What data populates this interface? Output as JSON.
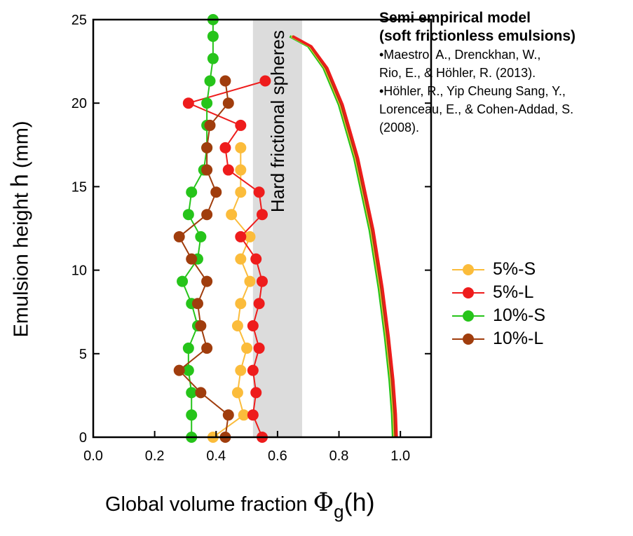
{
  "chart_data": {
    "type": "scatter",
    "xlabel": {
      "prefix": "Global volume fraction ",
      "symbol": "Φ",
      "subscript": "g",
      "suffix": "(h)"
    },
    "ylabel": {
      "prefix": "Emulsion height ",
      "symbol": "h",
      "suffix": " (mm)"
    },
    "xlim": [
      0,
      1.1
    ],
    "ylim": [
      0,
      25
    ],
    "xticks": [
      "0.0",
      "0.2",
      "0.4",
      "0.6",
      "0.8",
      "1.0"
    ],
    "yticks": [
      "0",
      "5",
      "10",
      "15",
      "20",
      "25"
    ],
    "band": {
      "label": "Hard frictional spheres",
      "x_range": [
        0.52,
        0.68
      ],
      "color": "#dcdcdc"
    },
    "legend_position": "right",
    "series": [
      {
        "name": "5%-S",
        "color": "#fbbc3b",
        "points": [
          [
            0.39,
            0
          ],
          [
            0.49,
            1.33
          ],
          [
            0.47,
            2.67
          ],
          [
            0.48,
            4
          ],
          [
            0.5,
            5.33
          ],
          [
            0.47,
            6.67
          ],
          [
            0.48,
            8
          ],
          [
            0.51,
            9.33
          ],
          [
            0.48,
            10.67
          ],
          [
            0.51,
            12
          ],
          [
            0.45,
            13.33
          ],
          [
            0.48,
            14.67
          ],
          [
            0.48,
            16
          ],
          [
            0.48,
            17.33
          ]
        ]
      },
      {
        "name": "5%-L",
        "color": "#ee1c1c",
        "points": [
          [
            0.55,
            0
          ],
          [
            0.52,
            1.33
          ],
          [
            0.53,
            2.67
          ],
          [
            0.52,
            4
          ],
          [
            0.54,
            5.33
          ],
          [
            0.52,
            6.67
          ],
          [
            0.54,
            8
          ],
          [
            0.55,
            9.33
          ],
          [
            0.53,
            10.67
          ],
          [
            0.48,
            12
          ],
          [
            0.55,
            13.33
          ],
          [
            0.54,
            14.67
          ],
          [
            0.44,
            16
          ],
          [
            0.43,
            17.33
          ],
          [
            0.48,
            18.67
          ],
          [
            0.31,
            20
          ],
          [
            0.56,
            21.33
          ]
        ]
      },
      {
        "name": "10%-S",
        "color": "#26c41a",
        "points": [
          [
            0.32,
            0
          ],
          [
            0.32,
            1.33
          ],
          [
            0.32,
            2.67
          ],
          [
            0.31,
            4
          ],
          [
            0.31,
            5.33
          ],
          [
            0.34,
            6.67
          ],
          [
            0.32,
            8
          ],
          [
            0.29,
            9.33
          ],
          [
            0.34,
            10.67
          ],
          [
            0.35,
            12
          ],
          [
            0.31,
            13.33
          ],
          [
            0.32,
            14.67
          ],
          [
            0.36,
            16
          ],
          [
            0.37,
            17.33
          ],
          [
            0.37,
            18.67
          ],
          [
            0.37,
            20
          ],
          [
            0.38,
            21.33
          ],
          [
            0.39,
            22.67
          ],
          [
            0.39,
            24
          ],
          [
            0.39,
            25
          ]
        ]
      },
      {
        "name": "10%-L",
        "color": "#a03d0d",
        "points": [
          [
            0.43,
            0
          ],
          [
            0.44,
            1.33
          ],
          [
            0.35,
            2.67
          ],
          [
            0.28,
            4
          ],
          [
            0.37,
            5.33
          ],
          [
            0.35,
            6.67
          ],
          [
            0.34,
            8
          ],
          [
            0.37,
            9.33
          ],
          [
            0.32,
            10.67
          ],
          [
            0.28,
            12
          ],
          [
            0.37,
            13.33
          ],
          [
            0.4,
            14.67
          ],
          [
            0.37,
            16
          ],
          [
            0.37,
            17.33
          ],
          [
            0.38,
            18.67
          ],
          [
            0.44,
            20
          ],
          [
            0.43,
            21.33
          ]
        ]
      }
    ],
    "model_curves": [
      {
        "color": "#26c41a",
        "points": [
          [
            0.64,
            24
          ],
          [
            0.7,
            23.4
          ],
          [
            0.75,
            22.1
          ],
          [
            0.8,
            19.9
          ],
          [
            0.85,
            16.7
          ],
          [
            0.9,
            12.4
          ],
          [
            0.93,
            8.9
          ],
          [
            0.95,
            6
          ],
          [
            0.965,
            3.4
          ],
          [
            0.973,
            1.4
          ],
          [
            0.976,
            0
          ]
        ]
      },
      {
        "color": "#fbbc3b",
        "points": [
          [
            0.645,
            24
          ],
          [
            0.705,
            23.4
          ],
          [
            0.755,
            22.1
          ],
          [
            0.805,
            19.9
          ],
          [
            0.855,
            16.7
          ],
          [
            0.905,
            12.4
          ],
          [
            0.935,
            8.9
          ],
          [
            0.955,
            6
          ],
          [
            0.97,
            3.4
          ],
          [
            0.978,
            1.4
          ],
          [
            0.981,
            0
          ]
        ]
      },
      {
        "color": "#a03d0d",
        "points": [
          [
            0.648,
            24
          ],
          [
            0.708,
            23.4
          ],
          [
            0.758,
            22.1
          ],
          [
            0.808,
            19.9
          ],
          [
            0.858,
            16.7
          ],
          [
            0.908,
            12.4
          ],
          [
            0.938,
            8.9
          ],
          [
            0.958,
            6
          ],
          [
            0.973,
            3.4
          ],
          [
            0.981,
            1.4
          ],
          [
            0.984,
            0
          ]
        ]
      },
      {
        "color": "#ee1c1c",
        "points": [
          [
            0.65,
            24
          ],
          [
            0.71,
            23.4
          ],
          [
            0.762,
            22.1
          ],
          [
            0.812,
            19.9
          ],
          [
            0.862,
            16.7
          ],
          [
            0.912,
            12.4
          ],
          [
            0.942,
            8.9
          ],
          [
            0.962,
            6
          ],
          [
            0.977,
            3.4
          ],
          [
            0.985,
            1.4
          ],
          [
            0.988,
            0
          ]
        ]
      }
    ]
  },
  "reference": {
    "title_lines": [
      "Semi empirical model",
      "(soft frictionless emulsions)"
    ],
    "lines": [
      "•Maestro, A., Drenckhan, W.,",
      "Rio, E., & Höhler, R. (2013).",
      "•Höhler, R., Yip Cheung Sang, Y.,",
      "Lorenceau, E., & Cohen-Addad, S.",
      "(2008)."
    ]
  }
}
